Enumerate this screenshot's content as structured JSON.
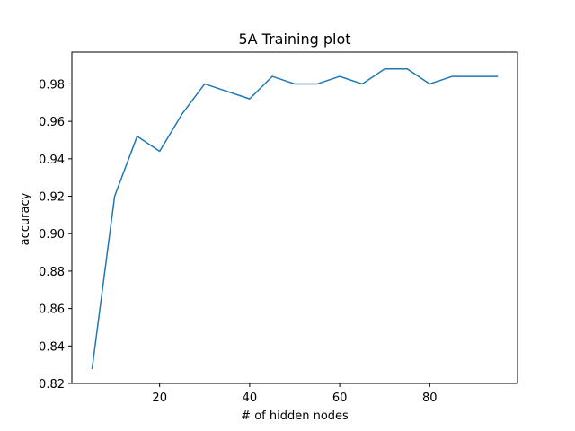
{
  "chart_data": {
    "type": "line",
    "title": "5A Training plot",
    "xlabel": "# of hidden nodes",
    "ylabel": "accuracy",
    "xlim": [
      0.5,
      99.5
    ],
    "ylim": [
      0.82,
      0.997
    ],
    "x_ticks": [
      20,
      40,
      60,
      80
    ],
    "x_tick_labels": [
      "20",
      "40",
      "60",
      "80"
    ],
    "y_ticks": [
      0.82,
      0.84,
      0.86,
      0.88,
      0.9,
      0.92,
      0.94,
      0.96,
      0.98
    ],
    "y_tick_labels": [
      "0.82",
      "0.84",
      "0.86",
      "0.88",
      "0.90",
      "0.92",
      "0.94",
      "0.96",
      "0.98"
    ],
    "grid": false,
    "legend": "none",
    "series": [
      {
        "color": "#1f77b4",
        "x": [
          5,
          10,
          15,
          20,
          25,
          30,
          35,
          40,
          45,
          50,
          55,
          60,
          65,
          70,
          75,
          80,
          85,
          90,
          95
        ],
        "y": [
          0.828,
          0.92,
          0.952,
          0.944,
          0.964,
          0.98,
          0.976,
          0.972,
          0.984,
          0.98,
          0.98,
          0.984,
          0.98,
          0.988,
          0.988,
          0.98,
          0.984,
          0.984,
          0.984
        ]
      }
    ]
  }
}
